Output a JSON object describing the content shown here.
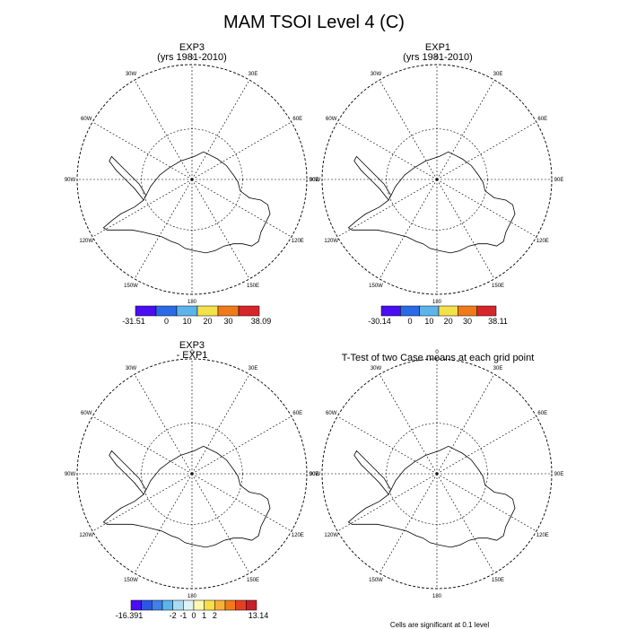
{
  "title": "MAM TSOI Level 4 (C)",
  "panels": [
    {
      "id": "exp3",
      "title_lines": [
        "EXP3",
        "(yrs 1981-2010)"
      ],
      "colorbar": {
        "colors": [
          "#4b0df2",
          "#2a6ae6",
          "#5cb4ea",
          "#f2e14a",
          "#f07a1a",
          "#d6262a"
        ],
        "labels": [
          "-31.51",
          "0",
          "10",
          "20",
          "30",
          "38.09"
        ]
      }
    },
    {
      "id": "exp1",
      "title_lines": [
        "EXP1",
        "(yrs 1981-2010)"
      ],
      "colorbar": {
        "colors": [
          "#4b0df2",
          "#2a6ae6",
          "#5cb4ea",
          "#f2e14a",
          "#f07a1a",
          "#d6262a"
        ],
        "labels": [
          "-30.14",
          "0",
          "10",
          "20",
          "30",
          "38.11"
        ]
      }
    },
    {
      "id": "diff",
      "title_lines": [
        "EXP3",
        "- EXP1"
      ],
      "colorbar": {
        "colors": [
          "#4b0df2",
          "#2a57e6",
          "#3f80ea",
          "#5cb4ea",
          "#a9dcf2",
          "#dff2f7",
          "#fff8b0",
          "#f7df4a",
          "#f7b13a",
          "#f07a1a",
          "#e34020",
          "#c81e2a"
        ],
        "labels": [
          "-16.391",
          "-2",
          "-1",
          "0",
          "1",
          "2",
          "13.14"
        ]
      }
    },
    {
      "id": "ttest",
      "title_lines": [
        "T-Test of two Case means at each grid point"
      ],
      "note": "Cells are significant at 0.1 level"
    }
  ],
  "map_labels": {
    "top": "0",
    "bottom": "180",
    "left": "90W",
    "right": "90E",
    "upper_left_1": "30W",
    "upper_left_2": "60W",
    "upper_right_1": "30E",
    "upper_right_2": "60E",
    "lower_left_1": "120W",
    "lower_left_2": "150W",
    "lower_right_1": "120E",
    "lower_right_2": "150E"
  }
}
